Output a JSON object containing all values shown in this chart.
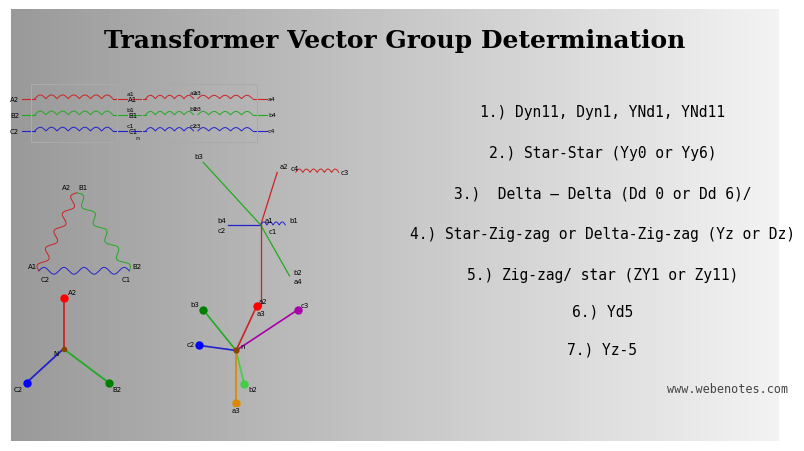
{
  "title": "Transformer Vector Group Determination",
  "title_fontsize": 18,
  "title_fontweight": "bold",
  "title_fontfamily": "DejaVu Serif",
  "text_lines": [
    "1.) Dyn11, Dyn1, YNd1, YNd11",
    "2.) Star-Star (Yy0 or Yy6)",
    "3.)  Delta – Delta (Dd 0 or Dd 6)/",
    "4.) Star-Zig-zag or Delta-Zig-zag (Yz or Dz)",
    "5.) Zig-zag/ star (ZY1 or Zy11)",
    "6.) Yd5",
    "7.) Yz-5"
  ],
  "watermark": "www.webenotes.com",
  "panel_bg": "#ffffff",
  "coil_color_r": "#cc2222",
  "coil_color_g": "#22aa22",
  "coil_color_b": "#2222cc",
  "font_size_text": 10.5,
  "font_size_label": 5
}
